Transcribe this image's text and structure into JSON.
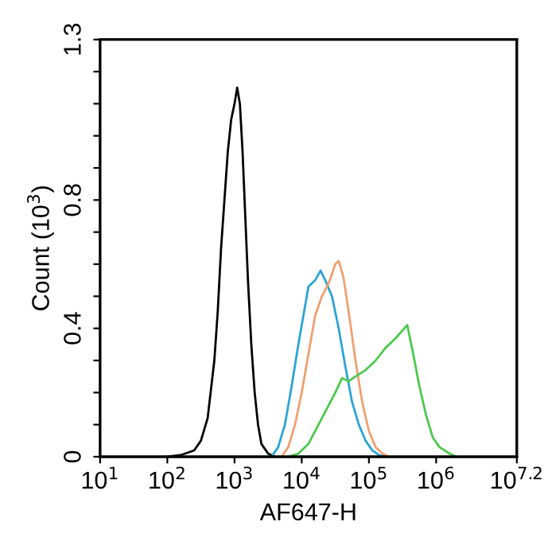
{
  "chart_data": {
    "type": "line",
    "xlabel": "AF647-H",
    "ylabel": "Count (10$^{3}$)",
    "log": "x",
    "grid": false,
    "legend": false,
    "marker": "none",
    "line_style": "solid",
    "xlim": [
      10,
      15848932
    ],
    "xticks": [
      {
        "value": 10,
        "label": "10$^{1}$"
      },
      {
        "value": 100,
        "label": "10$^{2}$"
      },
      {
        "value": 1000,
        "label": "10$^{3}$"
      },
      {
        "value": 10000,
        "label": "10$^{4}$"
      },
      {
        "value": 100000,
        "label": "10$^{5}$"
      },
      {
        "value": 1000000,
        "label": "10$^{6}$"
      },
      {
        "value": 15848932,
        "label": "10$^{7.2}$"
      }
    ],
    "ylim": [
      0,
      1.3
    ],
    "yticks": [
      0,
      {
        "value": 0.1,
        "label": null
      },
      {
        "value": 0.2,
        "label": null
      },
      {
        "value": 0.3,
        "label": null
      },
      0.4,
      {
        "value": 0.5,
        "label": null
      },
      {
        "value": 0.6,
        "label": null
      },
      {
        "value": 0.7,
        "label": null
      },
      0.8,
      {
        "value": 0.9,
        "label": null
      },
      {
        "value": 1.0,
        "label": null
      },
      {
        "value": 1.1,
        "label": null
      },
      {
        "value": 1.2,
        "label": null
      },
      1.3
    ],
    "series": [
      {
        "color": "#000000",
        "x": [
          100,
          158,
          251,
          316,
          398,
          501,
          562,
          631,
          708,
          794,
          891,
          1000,
          1096,
          1202,
          1318,
          1445,
          1585,
          1778,
          1995,
          2239,
          2512,
          3162,
          3981
        ],
        "values": [
          0,
          0.005,
          0.02,
          0.05,
          0.12,
          0.3,
          0.45,
          0.65,
          0.8,
          0.95,
          1.05,
          1.1,
          1.15,
          1.1,
          0.95,
          0.75,
          0.55,
          0.35,
          0.2,
          0.1,
          0.04,
          0.01,
          0
        ]
      },
      {
        "color": "#2aa4d4",
        "x": [
          3548,
          4467,
          5623,
          7079,
          8913,
          11220,
          12589,
          15849,
          19055,
          22387,
          28184,
          35481,
          44668,
          56234,
          70795,
          89125,
          112202,
          141254,
          177828
        ],
        "values": [
          0,
          0.03,
          0.1,
          0.22,
          0.35,
          0.47,
          0.53,
          0.55,
          0.58,
          0.55,
          0.5,
          0.4,
          0.28,
          0.17,
          0.1,
          0.05,
          0.02,
          0.005,
          0
        ]
      },
      {
        "color": "#f0a070",
        "x": [
          5012,
          6310,
          7943,
          10000,
          12589,
          15849,
          19953,
          25119,
          31623,
          35481,
          41687,
          50119,
          63096,
          79433,
          100000,
          125893,
          158489,
          199526
        ],
        "values": [
          0,
          0.03,
          0.1,
          0.2,
          0.32,
          0.44,
          0.5,
          0.54,
          0.6,
          0.61,
          0.56,
          0.45,
          0.3,
          0.17,
          0.08,
          0.03,
          0.01,
          0
        ]
      },
      {
        "color": "#4cc94c",
        "x": [
          6310,
          8913,
          12589,
          17783,
          25119,
          31623,
          39811,
          50119,
          63096,
          89125,
          125893,
          177828,
          251189,
          371535,
          446684,
          562341,
          707946,
          891251,
          1122018,
          1584893,
          1995262
        ],
        "values": [
          0,
          0.01,
          0.04,
          0.1,
          0.16,
          0.2,
          0.245,
          0.235,
          0.25,
          0.27,
          0.3,
          0.34,
          0.37,
          0.41,
          0.33,
          0.22,
          0.13,
          0.06,
          0.03,
          0.01,
          0
        ]
      }
    ]
  }
}
